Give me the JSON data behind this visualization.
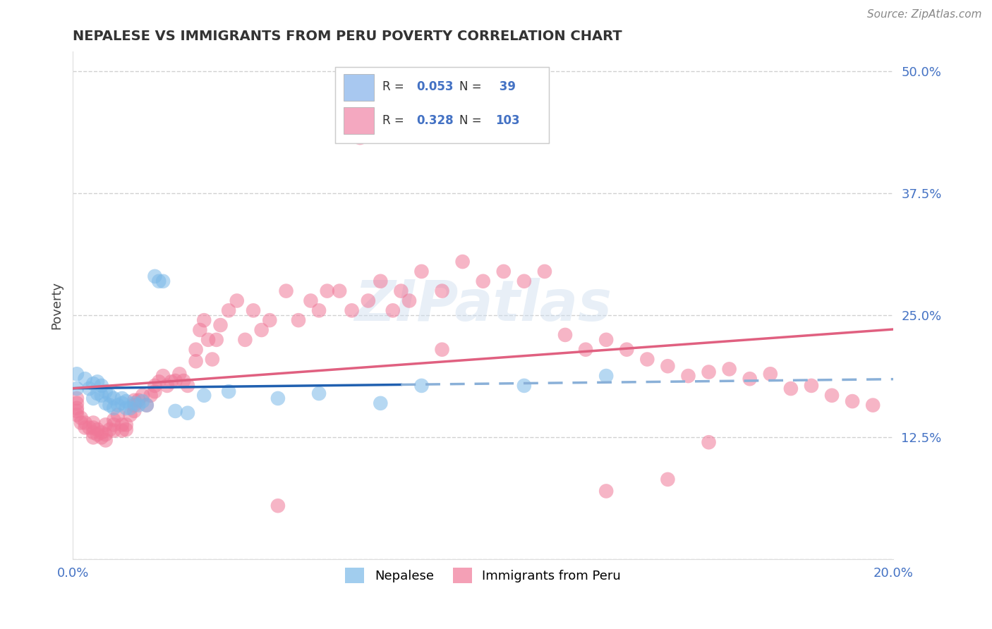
{
  "title": "NEPALESE VS IMMIGRANTS FROM PERU POVERTY CORRELATION CHART",
  "source_text": "Source: ZipAtlas.com",
  "ylabel_label": "Poverty",
  "xlim": [
    0.0,
    0.2
  ],
  "ylim": [
    0.0,
    0.52
  ],
  "yticks": [
    0.0,
    0.125,
    0.25,
    0.375,
    0.5
  ],
  "ytick_labels": [
    "",
    "12.5%",
    "25.0%",
    "37.5%",
    "50.0%"
  ],
  "legend_entries": [
    {
      "color": "#a8c8f0",
      "R": "0.053",
      "N": " 39"
    },
    {
      "color": "#f4a8c0",
      "R": "0.328",
      "N": "103"
    }
  ],
  "bottom_legend": [
    "Nepalese",
    "Immigrants from Peru"
  ],
  "nepalese_color": "#7ab8e8",
  "peru_color": "#f07898",
  "nepalese_line_color": "#2060b0",
  "nepalese_line_dash_color": "#8ab0d8",
  "peru_line_color": "#e06080",
  "watermark_text": "ZIPatlas",
  "background_color": "#ffffff",
  "grid_color": "#cccccc",
  "nepalese_x": [
    0.001,
    0.001,
    0.003,
    0.004,
    0.005,
    0.005,
    0.006,
    0.006,
    0.007,
    0.007,
    0.008,
    0.008,
    0.009,
    0.009,
    0.01,
    0.01,
    0.011,
    0.012,
    0.012,
    0.013,
    0.013,
    0.014,
    0.015,
    0.016,
    0.017,
    0.018,
    0.02,
    0.021,
    0.022,
    0.025,
    0.028,
    0.032,
    0.038,
    0.05,
    0.06,
    0.075,
    0.085,
    0.11,
    0.13
  ],
  "nepalese_y": [
    0.175,
    0.19,
    0.185,
    0.175,
    0.165,
    0.18,
    0.17,
    0.182,
    0.168,
    0.178,
    0.16,
    0.172,
    0.158,
    0.168,
    0.155,
    0.165,
    0.158,
    0.16,
    0.165,
    0.155,
    0.162,
    0.155,
    0.16,
    0.158,
    0.162,
    0.158,
    0.29,
    0.285,
    0.285,
    0.152,
    0.15,
    0.168,
    0.172,
    0.165,
    0.17,
    0.16,
    0.178,
    0.178,
    0.188
  ],
  "peru_x": [
    0.001,
    0.001,
    0.001,
    0.001,
    0.001,
    0.002,
    0.002,
    0.003,
    0.003,
    0.004,
    0.005,
    0.005,
    0.005,
    0.005,
    0.006,
    0.006,
    0.007,
    0.007,
    0.008,
    0.008,
    0.008,
    0.009,
    0.01,
    0.01,
    0.01,
    0.011,
    0.012,
    0.012,
    0.013,
    0.013,
    0.014,
    0.015,
    0.015,
    0.015,
    0.016,
    0.017,
    0.018,
    0.019,
    0.02,
    0.02,
    0.021,
    0.022,
    0.023,
    0.024,
    0.025,
    0.026,
    0.027,
    0.028,
    0.03,
    0.03,
    0.031,
    0.032,
    0.033,
    0.034,
    0.035,
    0.036,
    0.038,
    0.04,
    0.042,
    0.044,
    0.046,
    0.048,
    0.05,
    0.052,
    0.055,
    0.058,
    0.06,
    0.062,
    0.065,
    0.068,
    0.07,
    0.072,
    0.075,
    0.078,
    0.08,
    0.082,
    0.085,
    0.09,
    0.095,
    0.1,
    0.105,
    0.11,
    0.115,
    0.12,
    0.125,
    0.13,
    0.135,
    0.14,
    0.145,
    0.15,
    0.155,
    0.16,
    0.165,
    0.17,
    0.175,
    0.18,
    0.185,
    0.19,
    0.195,
    0.13,
    0.145,
    0.155,
    0.09
  ],
  "peru_y": [
    0.148,
    0.152,
    0.155,
    0.16,
    0.165,
    0.14,
    0.145,
    0.135,
    0.14,
    0.135,
    0.125,
    0.13,
    0.135,
    0.14,
    0.128,
    0.133,
    0.125,
    0.13,
    0.122,
    0.128,
    0.138,
    0.133,
    0.132,
    0.138,
    0.143,
    0.148,
    0.132,
    0.138,
    0.133,
    0.138,
    0.148,
    0.152,
    0.158,
    0.163,
    0.163,
    0.168,
    0.158,
    0.168,
    0.172,
    0.178,
    0.182,
    0.188,
    0.178,
    0.182,
    0.183,
    0.19,
    0.183,
    0.178,
    0.203,
    0.215,
    0.235,
    0.245,
    0.225,
    0.205,
    0.225,
    0.24,
    0.255,
    0.265,
    0.225,
    0.255,
    0.235,
    0.245,
    0.055,
    0.275,
    0.245,
    0.265,
    0.255,
    0.275,
    0.275,
    0.255,
    0.432,
    0.265,
    0.285,
    0.255,
    0.275,
    0.265,
    0.295,
    0.275,
    0.305,
    0.285,
    0.295,
    0.285,
    0.295,
    0.23,
    0.215,
    0.225,
    0.215,
    0.205,
    0.198,
    0.188,
    0.192,
    0.195,
    0.185,
    0.19,
    0.175,
    0.178,
    0.168,
    0.162,
    0.158,
    0.07,
    0.082,
    0.12,
    0.215
  ]
}
